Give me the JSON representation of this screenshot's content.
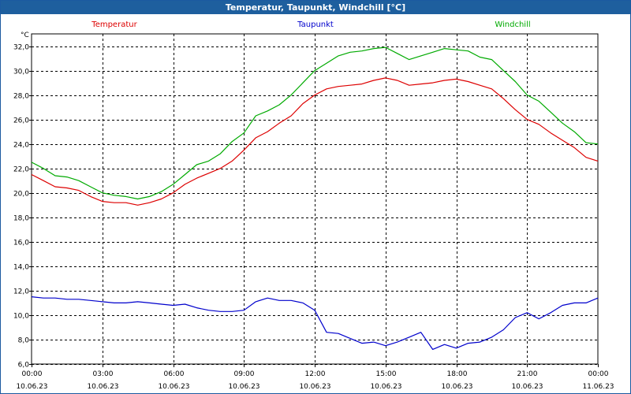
{
  "window": {
    "title": "Temperatur, Taupunkt, Windchill [°C]"
  },
  "chart_data": {
    "type": "line",
    "title": "Temperatur, Taupunkt, Windchill [°C]",
    "ylabel": "°C",
    "ylim": [
      6.0,
      33.0
    ],
    "y_ticks": [
      "32,0",
      "30,0",
      "28,0",
      "26,0",
      "24,0",
      "22,0",
      "20,0",
      "18,0",
      "16,0",
      "14,0",
      "12,0",
      "10,0",
      "8,0",
      "6,0"
    ],
    "x_range_hours": [
      0,
      24
    ],
    "x_ticks": [
      {
        "time": "00:00",
        "date": "10.06.23"
      },
      {
        "time": "03:00",
        "date": "10.06.23"
      },
      {
        "time": "06:00",
        "date": "10.06.23"
      },
      {
        "time": "09:00",
        "date": "10.06.23"
      },
      {
        "time": "12:00",
        "date": "10.06.23"
      },
      {
        "time": "15:00",
        "date": "10.06.23"
      },
      {
        "time": "18:00",
        "date": "10.06.23"
      },
      {
        "time": "21:00",
        "date": "10.06.23"
      },
      {
        "time": "00:00",
        "date": "11.06.23"
      }
    ],
    "grid": true,
    "legend_position": "top",
    "series": [
      {
        "name": "Temperatur",
        "color": "#dd0000",
        "points": [
          [
            0,
            21.5
          ],
          [
            0.5,
            21.0
          ],
          [
            1,
            20.5
          ],
          [
            1.5,
            20.4
          ],
          [
            2,
            20.2
          ],
          [
            2.5,
            19.7
          ],
          [
            3,
            19.3
          ],
          [
            3.5,
            19.2
          ],
          [
            4,
            19.2
          ],
          [
            4.5,
            19.0
          ],
          [
            5,
            19.2
          ],
          [
            5.5,
            19.5
          ],
          [
            6,
            20.0
          ],
          [
            6.5,
            20.7
          ],
          [
            7,
            21.2
          ],
          [
            7.5,
            21.6
          ],
          [
            8,
            22.0
          ],
          [
            8.5,
            22.6
          ],
          [
            9,
            23.5
          ],
          [
            9.5,
            24.5
          ],
          [
            10,
            25.0
          ],
          [
            10.5,
            25.7
          ],
          [
            11,
            26.3
          ],
          [
            11.5,
            27.3
          ],
          [
            12,
            28.0
          ],
          [
            12.5,
            28.5
          ],
          [
            13,
            28.7
          ],
          [
            13.5,
            28.8
          ],
          [
            14,
            28.9
          ],
          [
            14.5,
            29.2
          ],
          [
            15,
            29.4
          ],
          [
            15.5,
            29.2
          ],
          [
            16,
            28.8
          ],
          [
            16.5,
            28.9
          ],
          [
            17,
            29.0
          ],
          [
            17.5,
            29.2
          ],
          [
            18,
            29.3
          ],
          [
            18.5,
            29.1
          ],
          [
            19,
            28.8
          ],
          [
            19.5,
            28.5
          ],
          [
            20,
            27.7
          ],
          [
            20.5,
            26.8
          ],
          [
            21,
            26.0
          ],
          [
            21.5,
            25.6
          ],
          [
            22,
            24.9
          ],
          [
            22.5,
            24.3
          ],
          [
            23,
            23.7
          ],
          [
            23.5,
            22.9
          ],
          [
            24,
            22.6
          ]
        ]
      },
      {
        "name": "Taupunkt",
        "color": "#0000cc",
        "points": [
          [
            0,
            11.5
          ],
          [
            0.5,
            11.4
          ],
          [
            1,
            11.4
          ],
          [
            1.5,
            11.3
          ],
          [
            2,
            11.3
          ],
          [
            2.5,
            11.2
          ],
          [
            3,
            11.1
          ],
          [
            3.5,
            11.0
          ],
          [
            4,
            11.0
          ],
          [
            4.5,
            11.1
          ],
          [
            5,
            11.0
          ],
          [
            5.5,
            10.9
          ],
          [
            6,
            10.8
          ],
          [
            6.5,
            10.9
          ],
          [
            7,
            10.6
          ],
          [
            7.5,
            10.4
          ],
          [
            8,
            10.3
          ],
          [
            8.5,
            10.3
          ],
          [
            9,
            10.4
          ],
          [
            9.5,
            11.1
          ],
          [
            10,
            11.4
          ],
          [
            10.5,
            11.2
          ],
          [
            11,
            11.2
          ],
          [
            11.5,
            11.0
          ],
          [
            12,
            10.4
          ],
          [
            12.5,
            8.6
          ],
          [
            13,
            8.5
          ],
          [
            13.5,
            8.1
          ],
          [
            14,
            7.7
          ],
          [
            14.5,
            7.8
          ],
          [
            15,
            7.5
          ],
          [
            15.5,
            7.8
          ],
          [
            16,
            8.2
          ],
          [
            16.5,
            8.6
          ],
          [
            17,
            7.2
          ],
          [
            17.5,
            7.6
          ],
          [
            18,
            7.3
          ],
          [
            18.5,
            7.7
          ],
          [
            19,
            7.8
          ],
          [
            19.5,
            8.2
          ],
          [
            20,
            8.8
          ],
          [
            20.5,
            9.8
          ],
          [
            21,
            10.2
          ],
          [
            21.5,
            9.7
          ],
          [
            22,
            10.2
          ],
          [
            22.5,
            10.8
          ],
          [
            23,
            11.0
          ],
          [
            23.5,
            11.0
          ],
          [
            24,
            11.4
          ]
        ]
      },
      {
        "name": "Windchill",
        "color": "#00aa00",
        "points": [
          [
            0,
            22.5
          ],
          [
            0.5,
            22.0
          ],
          [
            1,
            21.4
          ],
          [
            1.5,
            21.3
          ],
          [
            2,
            21.0
          ],
          [
            2.5,
            20.5
          ],
          [
            3,
            20.0
          ],
          [
            3.5,
            19.8
          ],
          [
            4,
            19.7
          ],
          [
            4.5,
            19.5
          ],
          [
            5,
            19.7
          ],
          [
            5.5,
            20.1
          ],
          [
            6,
            20.7
          ],
          [
            6.5,
            21.5
          ],
          [
            7,
            22.3
          ],
          [
            7.5,
            22.6
          ],
          [
            8,
            23.2
          ],
          [
            8.5,
            24.2
          ],
          [
            9,
            24.9
          ],
          [
            9.5,
            26.3
          ],
          [
            10,
            26.7
          ],
          [
            10.5,
            27.2
          ],
          [
            11,
            28.0
          ],
          [
            11.5,
            29.0
          ],
          [
            12,
            30.0
          ],
          [
            12.5,
            30.6
          ],
          [
            13,
            31.2
          ],
          [
            13.5,
            31.5
          ],
          [
            14,
            31.6
          ],
          [
            14.5,
            31.8
          ],
          [
            15,
            31.9
          ],
          [
            15.5,
            31.4
          ],
          [
            16,
            30.9
          ],
          [
            16.5,
            31.2
          ],
          [
            17,
            31.5
          ],
          [
            17.5,
            31.8
          ],
          [
            18,
            31.7
          ],
          [
            18.5,
            31.6
          ],
          [
            19,
            31.1
          ],
          [
            19.5,
            30.9
          ],
          [
            20,
            30.0
          ],
          [
            20.5,
            29.1
          ],
          [
            21,
            28.0
          ],
          [
            21.5,
            27.5
          ],
          [
            22,
            26.6
          ],
          [
            22.5,
            25.7
          ],
          [
            23,
            25.0
          ],
          [
            23.5,
            24.1
          ],
          [
            24,
            24.0
          ]
        ]
      }
    ]
  }
}
